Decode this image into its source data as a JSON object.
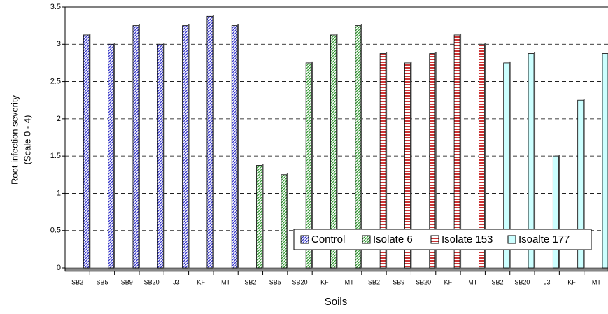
{
  "chart_data": {
    "type": "bar",
    "y_label": [
      "Root infection severity",
      "(Scale 0 - 4)"
    ],
    "x_label": "Soils",
    "categories": [
      "SB2",
      "SB5",
      "SB9",
      "SB20",
      "J3",
      "KF",
      "MT",
      "SB2",
      "SB5",
      "SB20",
      "KF",
      "MT",
      "SB2",
      "SB9",
      "SB20",
      "KF",
      "MT",
      "SB2",
      "SB20",
      "J3",
      "KF",
      "MT"
    ],
    "series": [
      {
        "name": "Control",
        "color": "#3333cc",
        "pattern": "diagonal",
        "values": [
          3.125,
          3,
          3.25,
          3,
          3.25,
          3.375,
          3.25,
          null,
          null,
          null,
          null,
          null,
          null,
          null,
          null,
          null,
          null,
          null,
          null,
          null,
          null,
          null
        ]
      },
      {
        "name": "Isolate 6",
        "color": "#339933",
        "pattern": "diagonal",
        "values": [
          null,
          null,
          null,
          null,
          null,
          null,
          null,
          1.375,
          1.25,
          2.75,
          3.125,
          3.25,
          null,
          null,
          null,
          null,
          null,
          null,
          null,
          null,
          null,
          null
        ]
      },
      {
        "name": "Isolate 153",
        "color": "#cc3333",
        "pattern": "horizontal",
        "values": [
          null,
          null,
          null,
          null,
          null,
          null,
          null,
          null,
          null,
          null,
          null,
          null,
          2.875,
          2.75,
          2.875,
          3.125,
          3,
          null,
          null,
          null,
          null,
          null
        ]
      },
      {
        "name": "Isoalte 177",
        "color": "#ccffff",
        "pattern": "solid",
        "values": [
          null,
          null,
          null,
          null,
          null,
          null,
          null,
          null,
          null,
          null,
          null,
          null,
          null,
          null,
          null,
          null,
          null,
          2.75,
          2.875,
          1.5,
          2.25,
          2.875
        ]
      }
    ],
    "ylim": [
      0,
      3.5
    ],
    "yticks": [
      0,
      0.5,
      1,
      1.5,
      2,
      2.5,
      3,
      3.5
    ],
    "grid": true,
    "legend": "lower right"
  }
}
